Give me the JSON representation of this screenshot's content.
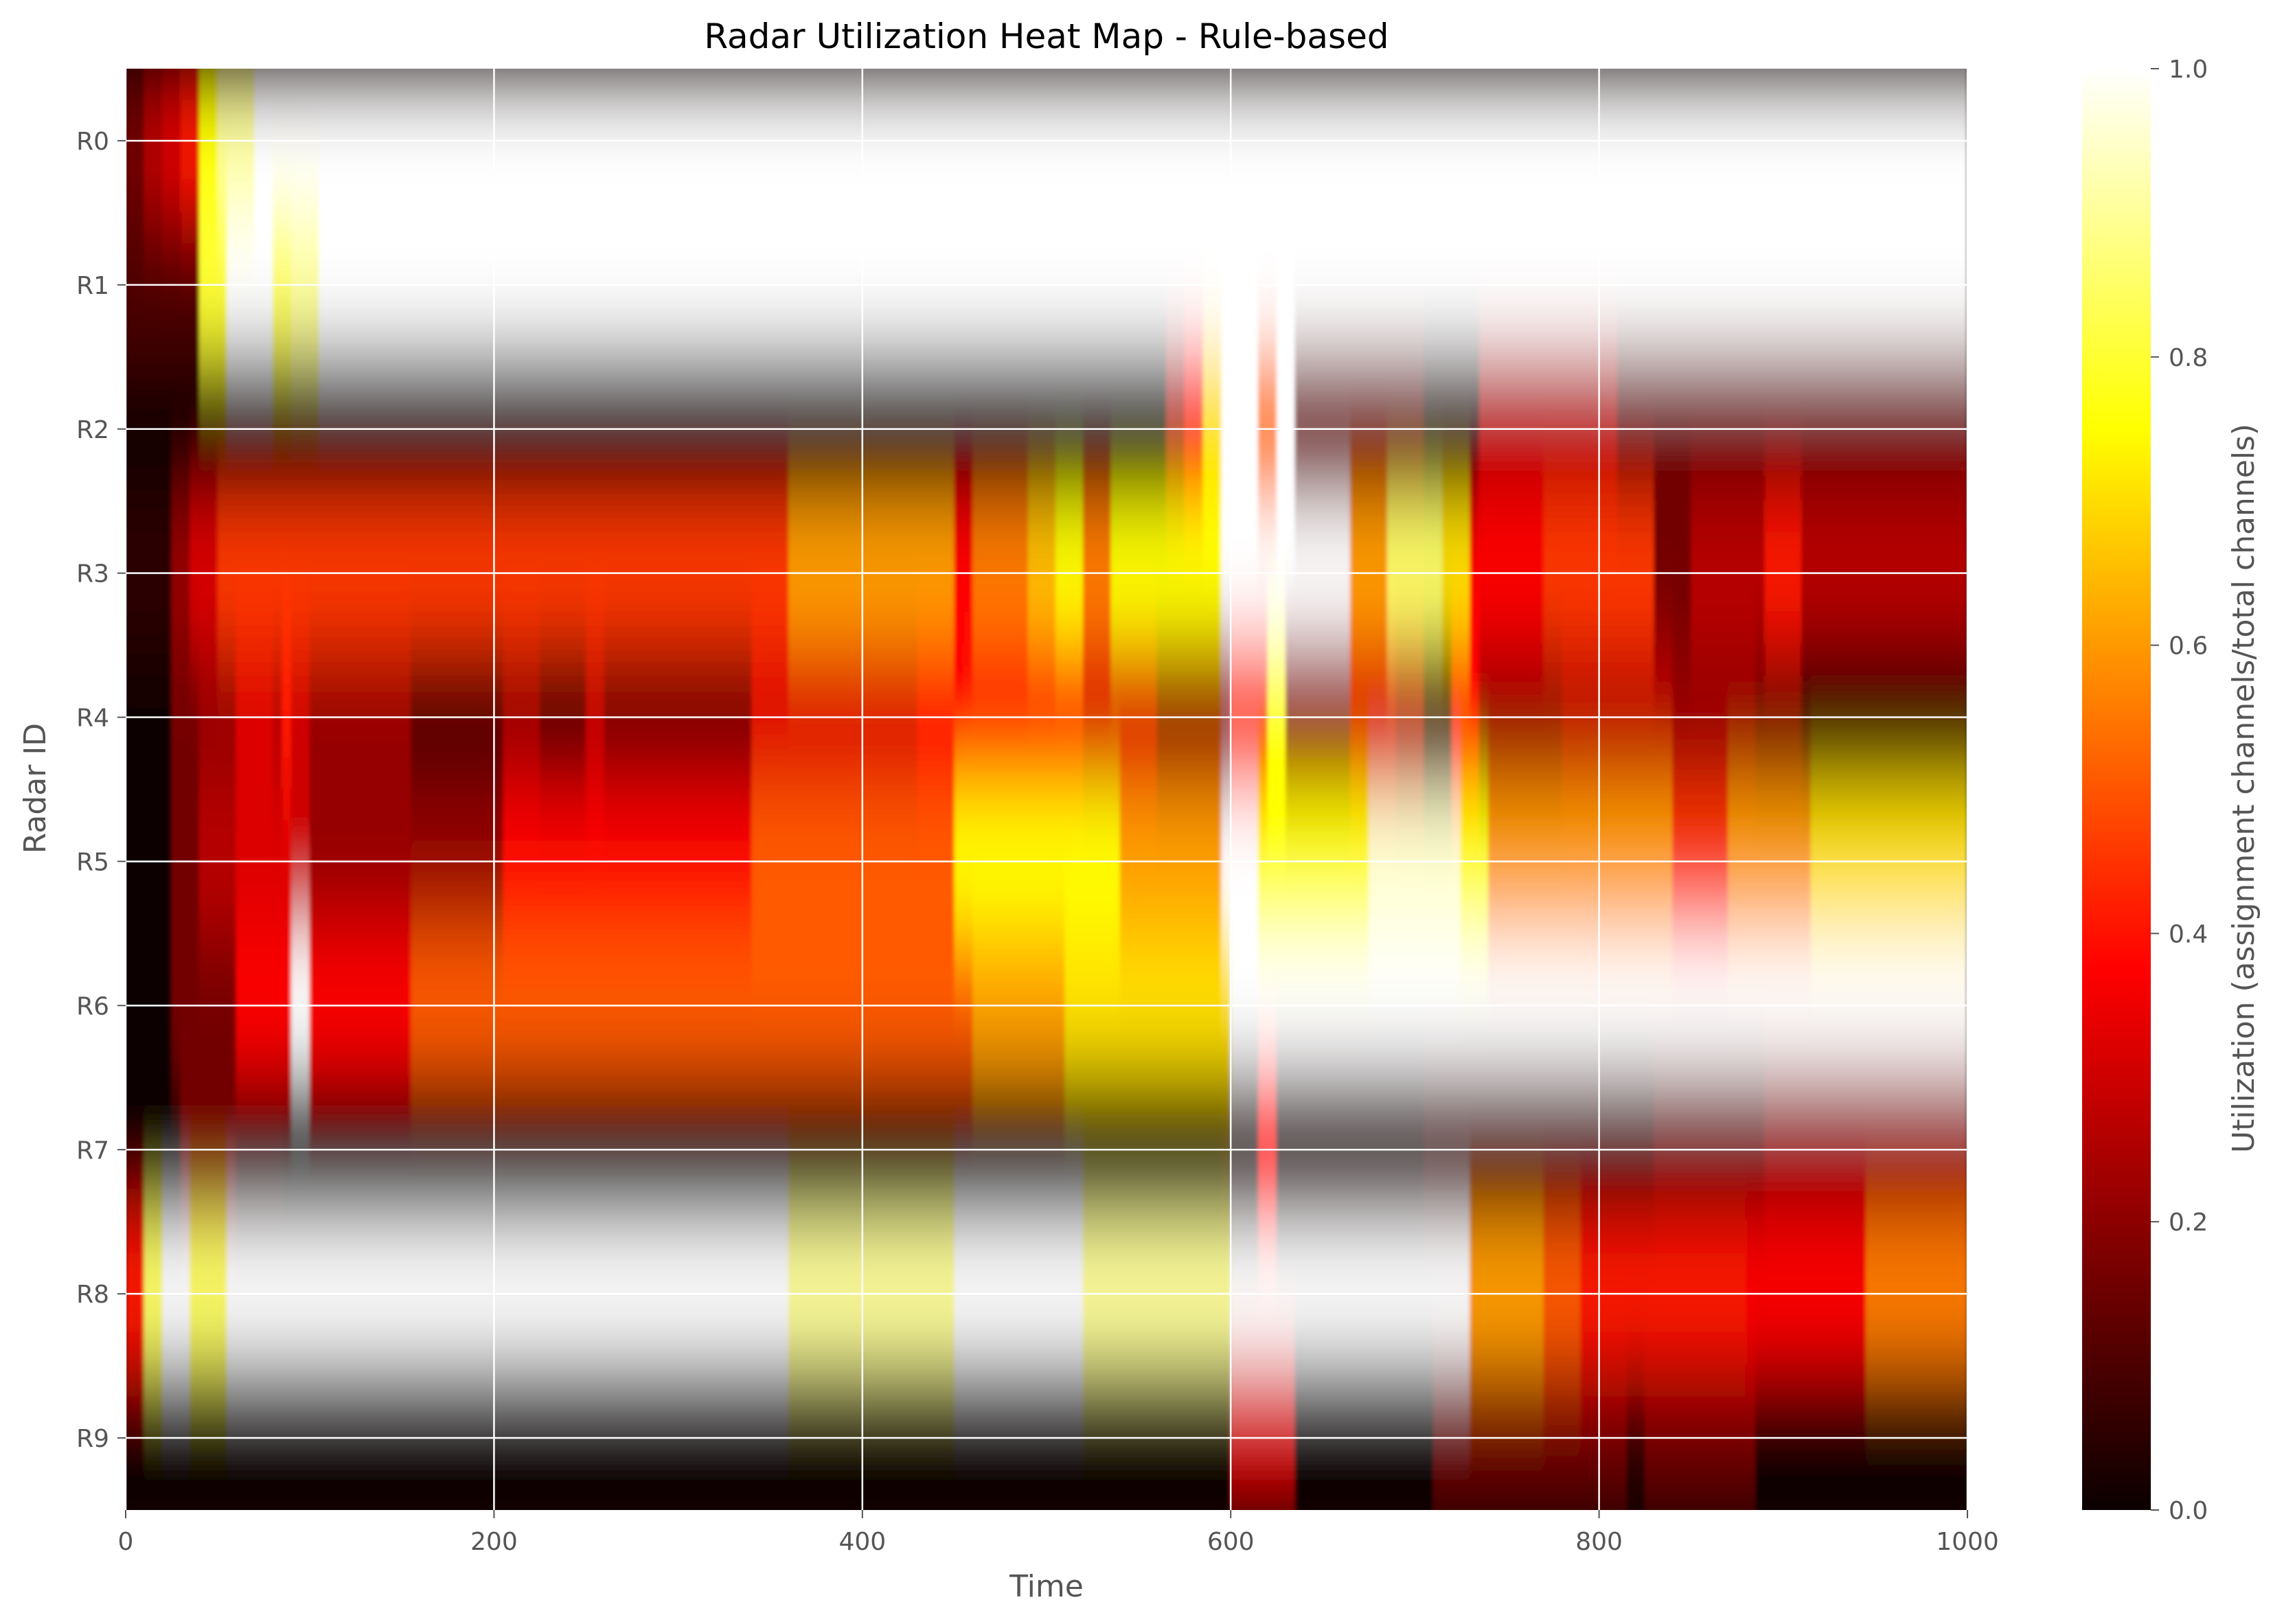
{
  "chart_data": {
    "type": "heatmap",
    "title": "Radar Utilization Heat Map - Rule-based",
    "xlabel": "Time",
    "ylabel": "Radar ID",
    "xlim": [
      0,
      1000
    ],
    "x_ticks": [
      0,
      200,
      400,
      600,
      800,
      1000
    ],
    "y_categories": [
      "R0",
      "R1",
      "R2",
      "R3",
      "R4",
      "R5",
      "R6",
      "R7",
      "R8",
      "R9"
    ],
    "interpolation": "bilinear (smooth)",
    "grid": true,
    "colormap": "hot",
    "colorbar": {
      "label": "Utilization (assignment channels/total channels)",
      "range": [
        0.0,
        1.0
      ],
      "ticks": [
        "0.0",
        "0.2",
        "0.4",
        "0.6",
        "0.8",
        "1.0"
      ]
    },
    "rows": [
      {
        "radar": "R0",
        "segments": [
          [
            0,
            10,
            0.15
          ],
          [
            10,
            20,
            0.25
          ],
          [
            20,
            30,
            0.3
          ],
          [
            30,
            40,
            0.4
          ],
          [
            40,
            50,
            0.75
          ],
          [
            50,
            70,
            0.9
          ],
          [
            70,
            1000,
            1.0
          ]
        ]
      },
      {
        "radar": "R1",
        "segments": [
          [
            0,
            40,
            0.1
          ],
          [
            40,
            55,
            0.8
          ],
          [
            55,
            80,
            1.0
          ],
          [
            80,
            90,
            0.85
          ],
          [
            90,
            105,
            0.9
          ],
          [
            105,
            1000,
            1.0
          ]
        ]
      },
      {
        "radar": "R2",
        "segments": [
          [
            0,
            565,
            0.0
          ],
          [
            565,
            575,
            0.25
          ],
          [
            575,
            585,
            0.4
          ],
          [
            585,
            595,
            0.7
          ],
          [
            595,
            615,
            1.0
          ],
          [
            615,
            625,
            0.55
          ],
          [
            625,
            635,
            1.0
          ],
          [
            635,
            705,
            0.15
          ],
          [
            705,
            735,
            0.05
          ],
          [
            735,
            810,
            0.25
          ],
          [
            810,
            1000,
            0.15
          ]
        ]
      },
      {
        "radar": "R3",
        "segments": [
          [
            0,
            25,
            0.05
          ],
          [
            25,
            35,
            0.2
          ],
          [
            35,
            50,
            0.3
          ],
          [
            50,
            360,
            0.45
          ],
          [
            360,
            450,
            0.6
          ],
          [
            450,
            460,
            0.35
          ],
          [
            460,
            490,
            0.55
          ],
          [
            490,
            505,
            0.65
          ],
          [
            505,
            520,
            0.75
          ],
          [
            520,
            535,
            0.55
          ],
          [
            535,
            595,
            0.75
          ],
          [
            595,
            665,
            1.0
          ],
          [
            665,
            685,
            0.6
          ],
          [
            685,
            715,
            0.85
          ],
          [
            715,
            730,
            0.7
          ],
          [
            730,
            770,
            0.35
          ],
          [
            770,
            830,
            0.45
          ],
          [
            830,
            850,
            0.15
          ],
          [
            850,
            890,
            0.25
          ],
          [
            890,
            910,
            0.4
          ],
          [
            910,
            1000,
            0.25
          ]
        ]
      },
      {
        "radar": "R4",
        "segments": [
          [
            0,
            25,
            0.0
          ],
          [
            25,
            40,
            0.15
          ],
          [
            40,
            60,
            0.2
          ],
          [
            60,
            80,
            0.3
          ],
          [
            80,
            85,
            0.25
          ],
          [
            85,
            90,
            0.4
          ],
          [
            90,
            100,
            0.28
          ],
          [
            100,
            155,
            0.2
          ],
          [
            155,
            205,
            0.1
          ],
          [
            205,
            225,
            0.2
          ],
          [
            225,
            250,
            0.1
          ],
          [
            250,
            260,
            0.25
          ],
          [
            260,
            340,
            0.15
          ],
          [
            340,
            430,
            0.3
          ],
          [
            430,
            455,
            0.35
          ],
          [
            455,
            520,
            0.4
          ],
          [
            520,
            560,
            0.3
          ],
          [
            560,
            600,
            0.2
          ],
          [
            600,
            620,
            0.45
          ],
          [
            620,
            630,
            0.75
          ],
          [
            630,
            665,
            0.2
          ],
          [
            665,
            690,
            0.3
          ],
          [
            690,
            705,
            0.25
          ],
          [
            705,
            720,
            0.1
          ],
          [
            720,
            735,
            0.35
          ],
          [
            735,
            780,
            0.2
          ],
          [
            780,
            840,
            0.25
          ],
          [
            840,
            885,
            0.2
          ],
          [
            885,
            910,
            0.15
          ],
          [
            910,
            1000,
            0.05
          ]
        ]
      },
      {
        "radar": "R5",
        "segments": [
          [
            0,
            25,
            0.0
          ],
          [
            25,
            40,
            0.15
          ],
          [
            40,
            60,
            0.25
          ],
          [
            60,
            90,
            0.3
          ],
          [
            90,
            100,
            0.28
          ],
          [
            100,
            150,
            0.2
          ],
          [
            150,
            205,
            0.2
          ],
          [
            205,
            340,
            0.35
          ],
          [
            340,
            450,
            0.5
          ],
          [
            450,
            500,
            0.75
          ],
          [
            500,
            540,
            0.75
          ],
          [
            540,
            595,
            0.6
          ],
          [
            595,
            615,
            1.0
          ],
          [
            615,
            675,
            0.75
          ],
          [
            675,
            725,
            0.95
          ],
          [
            725,
            740,
            0.75
          ],
          [
            740,
            790,
            0.6
          ],
          [
            790,
            840,
            0.6
          ],
          [
            840,
            870,
            0.45
          ],
          [
            870,
            915,
            0.6
          ],
          [
            915,
            1000,
            0.7
          ]
        ]
      },
      {
        "radar": "R6",
        "segments": [
          [
            0,
            25,
            0.0
          ],
          [
            25,
            60,
            0.15
          ],
          [
            60,
            90,
            0.35
          ],
          [
            90,
            100,
            1.0
          ],
          [
            100,
            155,
            0.35
          ],
          [
            155,
            460,
            0.5
          ],
          [
            460,
            510,
            0.6
          ],
          [
            510,
            600,
            0.7
          ],
          [
            600,
            1000,
            1.0
          ]
        ]
      },
      {
        "radar": "R7",
        "segments": [
          [
            0,
            30,
            0.0
          ],
          [
            30,
            60,
            0.15
          ],
          [
            60,
            85,
            0.05
          ],
          [
            85,
            595,
            0.0
          ],
          [
            595,
            615,
            0.05
          ],
          [
            615,
            625,
            0.35
          ],
          [
            625,
            705,
            0.05
          ],
          [
            705,
            730,
            0.1
          ],
          [
            730,
            830,
            0.1
          ],
          [
            830,
            890,
            0.15
          ],
          [
            890,
            1000,
            0.2
          ]
        ]
      },
      {
        "radar": "R8",
        "segments": [
          [
            0,
            10,
            0.4
          ],
          [
            10,
            20,
            0.85
          ],
          [
            20,
            35,
            1.0
          ],
          [
            35,
            55,
            0.85
          ],
          [
            55,
            360,
            1.0
          ],
          [
            360,
            450,
            0.9
          ],
          [
            450,
            520,
            1.0
          ],
          [
            520,
            600,
            0.9
          ],
          [
            600,
            730,
            1.0
          ],
          [
            730,
            770,
            0.6
          ],
          [
            770,
            790,
            0.5
          ],
          [
            790,
            830,
            0.4
          ],
          [
            830,
            880,
            0.4
          ],
          [
            880,
            945,
            0.35
          ],
          [
            945,
            1000,
            0.55
          ]
        ]
      },
      {
        "radar": "R9",
        "segments": [
          [
            0,
            600,
            0.0
          ],
          [
            600,
            635,
            0.3
          ],
          [
            635,
            710,
            0.0
          ],
          [
            710,
            815,
            0.15
          ],
          [
            815,
            825,
            0.05
          ],
          [
            825,
            885,
            0.15
          ],
          [
            885,
            1000,
            0.0
          ]
        ]
      }
    ]
  }
}
